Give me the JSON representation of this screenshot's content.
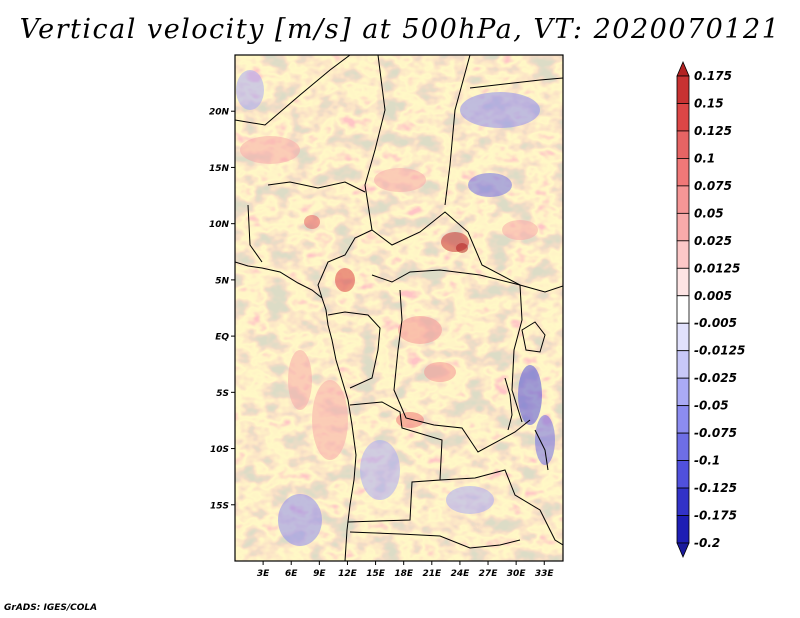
{
  "title": "Vertical velocity [m/s] at 500hPa, VT: 2020070121",
  "credit": "GrADS: IGES/COLA",
  "map": {
    "lon_range": [
      0,
      35
    ],
    "lat_range": [
      -20,
      25
    ],
    "lat_ticks": [
      {
        "value": 20,
        "label": "20N"
      },
      {
        "value": 15,
        "label": "15N"
      },
      {
        "value": 10,
        "label": "10N"
      },
      {
        "value": 5,
        "label": "5N"
      },
      {
        "value": 0,
        "label": "EQ"
      },
      {
        "value": -5,
        "label": "5S"
      },
      {
        "value": -10,
        "label": "10S"
      },
      {
        "value": -15,
        "label": "15S"
      }
    ],
    "lon_ticks": [
      {
        "value": 3,
        "label": "3E"
      },
      {
        "value": 6,
        "label": "6E"
      },
      {
        "value": 9,
        "label": "9E"
      },
      {
        "value": 12,
        "label": "12E"
      },
      {
        "value": 15,
        "label": "15E"
      },
      {
        "value": 18,
        "label": "18E"
      },
      {
        "value": 21,
        "label": "21E"
      },
      {
        "value": 24,
        "label": "24E"
      },
      {
        "value": 27,
        "label": "27E"
      },
      {
        "value": 30,
        "label": "30E"
      },
      {
        "value": 33,
        "label": "33E"
      }
    ]
  },
  "colorbar": {
    "labels": [
      "0.175",
      "0.15",
      "0.125",
      "0.1",
      "0.075",
      "0.05",
      "0.025",
      "0.0125",
      "0.005",
      "-0.005",
      "-0.0125",
      "-0.025",
      "-0.05",
      "-0.075",
      "-0.1",
      "-0.125",
      "-0.175",
      "-0.2"
    ],
    "colors": [
      "#b22222",
      "#c83232",
      "#dc4646",
      "#e66464",
      "#f07878",
      "#f59696",
      "#f8aaaa",
      "#fcc8c8",
      "#fde4e4",
      "#ffffff",
      "#e1e1fc",
      "#c8c8f8",
      "#aaaaf5",
      "#8c8cf0",
      "#6e6ee6",
      "#5050dc",
      "#3232c8",
      "#1e1eb4",
      "#1a1a9c"
    ]
  }
}
